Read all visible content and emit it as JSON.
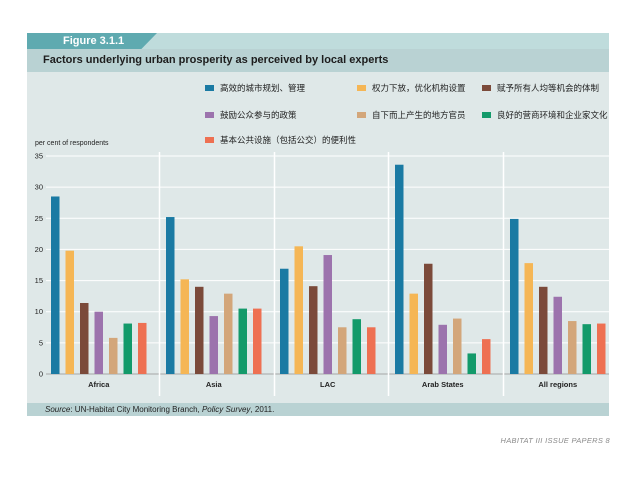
{
  "figure_label": "Figure 3.1.1",
  "title": "Factors underlying urban prosperity as perceived by local experts",
  "source": {
    "label": "Source",
    "text": ": UN-Habitat City Monitoring Branch, ",
    "italic": "Policy Survey",
    "suffix": ", 2011."
  },
  "footer": "HABITAT III ISSUE PAPERS 8",
  "colors": {
    "s1": "#1a7aa3",
    "s2": "#f5b655",
    "s3": "#7b4a3a",
    "s4": "#9c73ad",
    "s5": "#d3a67a",
    "s6": "#139a6a",
    "s7": "#ee7052"
  },
  "chart_data": {
    "type": "bar",
    "ylabel": "per cent of respondents",
    "ylim": [
      0,
      35
    ],
    "yticks": [
      0,
      5,
      10,
      15,
      20,
      25,
      30,
      35
    ],
    "grid": true,
    "legend_position": "top",
    "categories": [
      "Africa",
      "Asia",
      "LAC",
      "Arab States",
      "All regions"
    ],
    "series": [
      {
        "name": "高效的城市规划、管理",
        "values": [
          28.5,
          25.2,
          16.9,
          33.6,
          24.9
        ]
      },
      {
        "name": "权力下放，优化机构设置",
        "values": [
          19.8,
          15.2,
          20.5,
          12.9,
          17.8
        ]
      },
      {
        "name": "赋予所有人均等机会的体制",
        "values": [
          11.4,
          14.0,
          14.1,
          17.7,
          14.0
        ]
      },
      {
        "name": "鼓励公众参与的政策",
        "values": [
          10.0,
          9.3,
          19.1,
          7.9,
          12.4
        ]
      },
      {
        "name": "自下而上产生的地方官员",
        "values": [
          5.8,
          12.9,
          7.5,
          8.9,
          8.5
        ]
      },
      {
        "name": "良好的营商环境和企业家文化",
        "values": [
          8.1,
          10.5,
          8.8,
          3.3,
          8.0
        ]
      },
      {
        "name": "基本公共设施（包括公交）的便利性",
        "values": [
          8.2,
          10.5,
          7.5,
          5.6,
          8.1
        ]
      }
    ]
  }
}
